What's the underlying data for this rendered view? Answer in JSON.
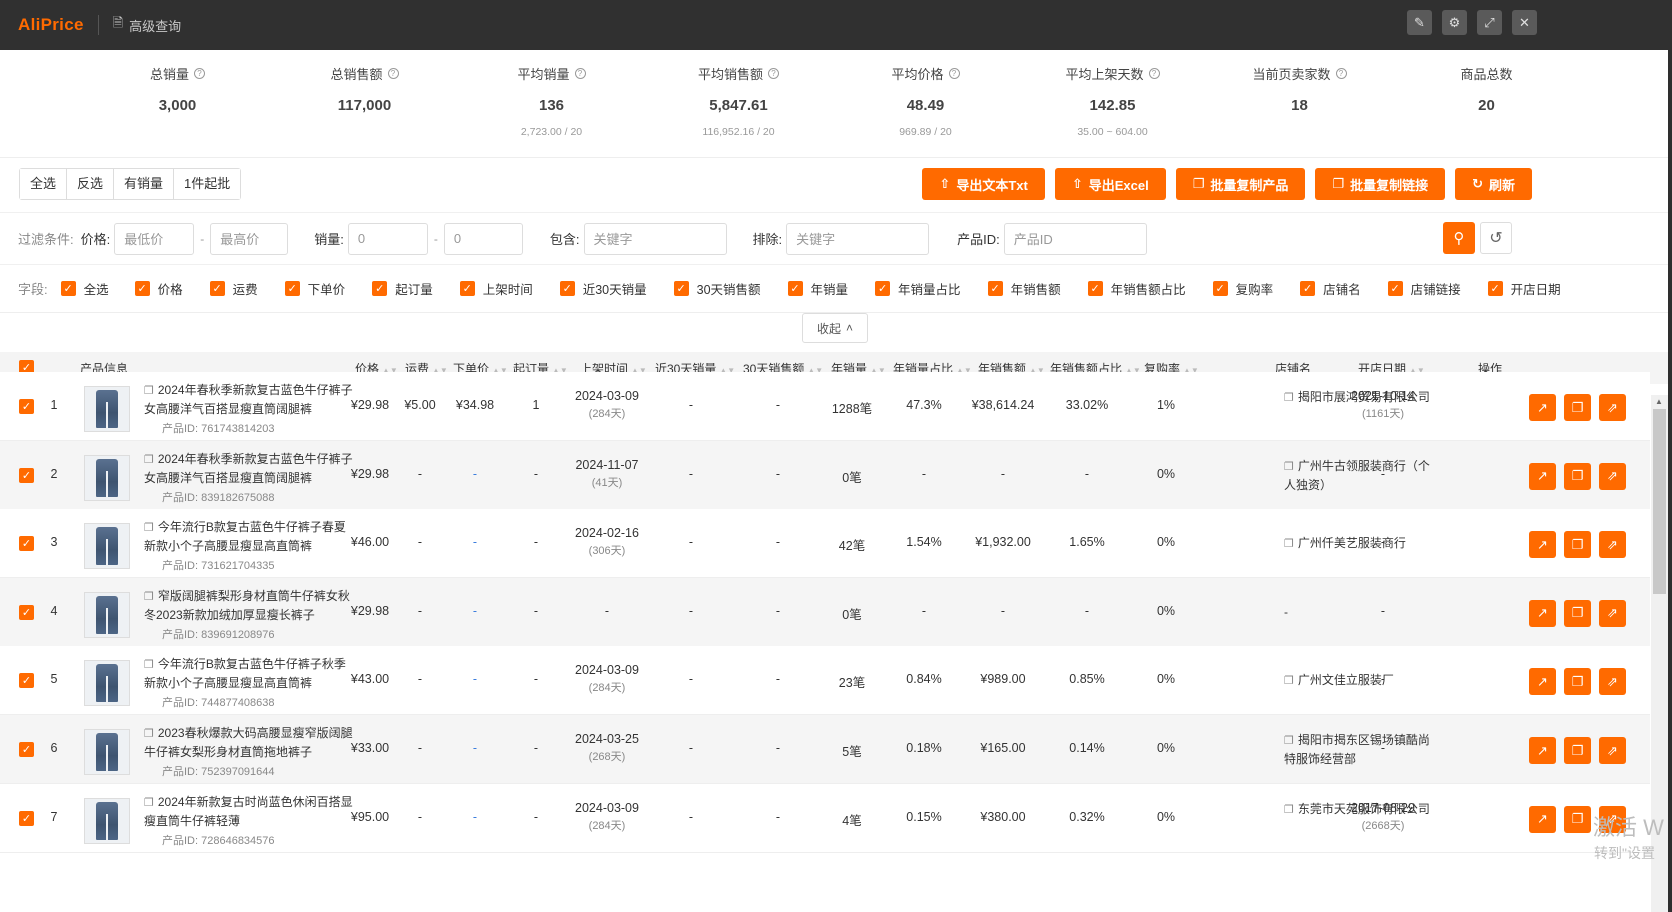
{
  "app": {
    "logo": "AliPrice",
    "title": "高级查询",
    "title_icon": "document-icon"
  },
  "window_buttons": [
    "edit-icon",
    "gear-icon",
    "expand-icon",
    "close-icon"
  ],
  "stats": [
    {
      "label": "总销量",
      "value": "3,000",
      "sub": ""
    },
    {
      "label": "总销售额",
      "value": "117,000",
      "sub": ""
    },
    {
      "label": "平均销量",
      "value": "136",
      "sub": "2,723.00 / 20"
    },
    {
      "label": "平均销售额",
      "value": "5,847.61",
      "sub": "116,952.16 / 20"
    },
    {
      "label": "平均价格",
      "value": "48.49",
      "sub": "969.89 / 20"
    },
    {
      "label": "平均上架天数",
      "value": "142.85",
      "sub": "35.00 ~ 604.00"
    },
    {
      "label": "当前页卖家数",
      "value": "18",
      "sub": ""
    },
    {
      "label": "商品总数",
      "value": "20",
      "sub": ""
    }
  ],
  "selection_buttons": [
    "全选",
    "反选",
    "有销量",
    "1件起批"
  ],
  "action_buttons": [
    "导出文本Txt",
    "导出Excel",
    "批量复制产品",
    "批量复制链接",
    "刷新"
  ],
  "filter": {
    "label": "过滤条件:",
    "price_label": "价格:",
    "price_min": "最低价",
    "price_max": "最高价",
    "sales_label": "销量:",
    "sales_min": "0",
    "sales_max": "0",
    "include_label": "包含:",
    "include_ph": "关键字",
    "exclude_label": "排除:",
    "exclude_ph": "关键字",
    "pid_label": "产品ID:",
    "pid_ph": "产品ID"
  },
  "fields": {
    "label": "字段:",
    "items": [
      "全选",
      "价格",
      "运费",
      "下单价",
      "起订量",
      "上架时间",
      "近30天销量",
      "30天销售额",
      "年销量",
      "年销量占比",
      "年销售额",
      "年销售额占比",
      "复购率",
      "店铺名",
      "店铺链接",
      "开店日期"
    ]
  },
  "collapse_label": "收起",
  "table": {
    "headers": [
      "产品信息",
      "价格",
      "运费",
      "下单价",
      "起订量",
      "上架时间",
      "近30天销量",
      "30天销售额",
      "年销量",
      "年销量占比",
      "年销售额",
      "年销售额占比",
      "复购率",
      "店铺名",
      "开店日期",
      "操作"
    ],
    "rows": [
      {
        "n": "1",
        "title": "2024年春秋季新款复古蓝色牛仔裤子女高腰洋气百搭显瘦直筒阔腿裤",
        "pid": "产品ID: 761743814203",
        "price": "¥29.98",
        "ship": "¥5.00",
        "order": "¥34.98",
        "moq": "1",
        "list_date": "2024-03-09",
        "list_days": "(284天)",
        "s30": "-",
        "a30": "-",
        "ys": "1288笔",
        "ysr": "47.3%",
        "ya": "¥38,614.24",
        "yar": "33.02%",
        "rep": "1%",
        "shop": "揭阳市展鸿贸易有限公司",
        "open": "2021-10-14",
        "open_days": "(1161天)"
      },
      {
        "n": "2",
        "title": "2024年春秋季新款复古蓝色牛仔裤子女高腰洋气百搭显瘦直筒阔腿裤",
        "pid": "产品ID: 839182675088",
        "price": "¥29.98",
        "ship": "-",
        "order": "-",
        "moq": "-",
        "list_date": "2024-11-07",
        "list_days": "(41天)",
        "s30": "-",
        "a30": "-",
        "ys": "0笔",
        "ysr": "-",
        "ya": "-",
        "yar": "-",
        "rep": "0%",
        "shop": "广州牛古领服装商行（个人独资）",
        "open": "-",
        "open_days": ""
      },
      {
        "n": "3",
        "title": "今年流行B款复古蓝色牛仔裤子春夏新款小个子高腰显瘦显高直筒裤",
        "pid": "产品ID: 731621704335",
        "price": "¥46.00",
        "ship": "-",
        "order": "-",
        "moq": "-",
        "list_date": "2024-02-16",
        "list_days": "(306天)",
        "s30": "-",
        "a30": "-",
        "ys": "42笔",
        "ysr": "1.54%",
        "ya": "¥1,932.00",
        "yar": "1.65%",
        "rep": "0%",
        "shop": "广州仟美艺服装商行",
        "open": "-",
        "open_days": ""
      },
      {
        "n": "4",
        "title": "窄版阔腿裤梨形身材直筒牛仔裤女秋冬2023新款加绒加厚显瘦长裤子",
        "pid": "产品ID: 839691208976",
        "price": "¥29.98",
        "ship": "-",
        "order": "-",
        "moq": "-",
        "list_date": "-",
        "list_days": "",
        "s30": "-",
        "a30": "-",
        "ys": "0笔",
        "ysr": "-",
        "ya": "-",
        "yar": "-",
        "rep": "0%",
        "shop": "-",
        "open": "-",
        "open_days": ""
      },
      {
        "n": "5",
        "title": "今年流行B款复古蓝色牛仔裤子秋季新款小个子高腰显瘦显高直筒裤",
        "pid": "产品ID: 744877408638",
        "price": "¥43.00",
        "ship": "-",
        "order": "-",
        "moq": "-",
        "list_date": "2024-03-09",
        "list_days": "(284天)",
        "s30": "-",
        "a30": "-",
        "ys": "23笔",
        "ysr": "0.84%",
        "ya": "¥989.00",
        "yar": "0.85%",
        "rep": "0%",
        "shop": "广州文佳立服装厂",
        "open": "-",
        "open_days": ""
      },
      {
        "n": "6",
        "title": "2023春秋爆款大码高腰显瘦窄版阔腿牛仔裤女梨形身材直筒拖地裤子",
        "pid": "产品ID: 752397091644",
        "price": "¥33.00",
        "ship": "-",
        "order": "-",
        "moq": "-",
        "list_date": "2024-03-25",
        "list_days": "(268天)",
        "s30": "-",
        "a30": "-",
        "ys": "5笔",
        "ysr": "0.18%",
        "ya": "¥165.00",
        "yar": "0.14%",
        "rep": "0%",
        "shop": "揭阳市揭东区锡场镇酷尚特服饰经营部",
        "open": "-",
        "open_days": ""
      },
      {
        "n": "7",
        "title": "2024年新款复古时尚蓝色休闲百搭显瘦直筒牛仔裤轻薄",
        "pid": "产品ID: 728646834576",
        "price": "¥95.00",
        "ship": "-",
        "order": "-",
        "moq": "-",
        "list_date": "2024-03-09",
        "list_days": "(284天)",
        "s30": "-",
        "a30": "-",
        "ys": "4笔",
        "ysr": "0.15%",
        "ya": "¥380.00",
        "yar": "0.32%",
        "rep": "0%",
        "shop": "东莞市天苑服饰有限公司",
        "open": "2017-08-29",
        "open_days": "(2668天)"
      }
    ]
  },
  "watermark": {
    "line1": "激活 W",
    "line2": "转到\"设置"
  },
  "colors": {
    "accent": "#ff6a00",
    "titlebar": "#303030"
  }
}
